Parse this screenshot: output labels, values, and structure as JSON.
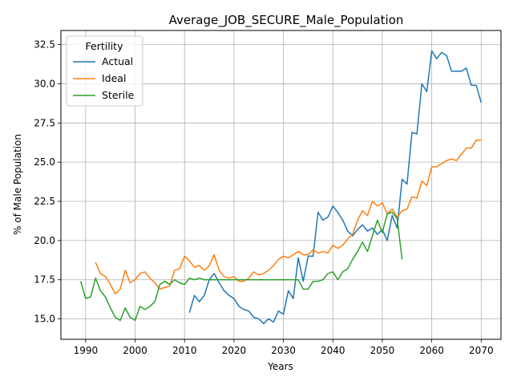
{
  "chart_data": {
    "type": "line",
    "title": "Average_JOB_SECURE_Male_Population",
    "xlabel": "Years",
    "ylabel": "% of Male Population",
    "xlim": [
      1985,
      2074
    ],
    "ylim": [
      13.7,
      33.4
    ],
    "xticks": [
      1990,
      2000,
      2010,
      2020,
      2030,
      2040,
      2050,
      2060,
      2070
    ],
    "yticks": [
      15.0,
      17.5,
      20.0,
      22.5,
      25.0,
      27.5,
      30.0,
      32.5
    ],
    "ytick_labels": [
      "15.0",
      "17.5",
      "20.0",
      "22.5",
      "25.0",
      "27.5",
      "30.0",
      "32.5"
    ],
    "grid": true,
    "legend": {
      "title": "Fertility",
      "placement": "top-left"
    },
    "series": [
      {
        "name": "Actual",
        "color": "#1f77b4",
        "x": [
          2011,
          2012,
          2013,
          2014,
          2015,
          2016,
          2017,
          2018,
          2019,
          2020,
          2021,
          2022,
          2023,
          2024,
          2025,
          2026,
          2027,
          2028,
          2029,
          2030,
          2031,
          2032,
          2033,
          2034,
          2035,
          2036,
          2037,
          2038,
          2039,
          2040,
          2041,
          2042,
          2043,
          2044,
          2045,
          2046,
          2047,
          2048,
          2049,
          2050,
          2051,
          2052,
          2053,
          2054,
          2055,
          2056,
          2057,
          2058,
          2059,
          2060,
          2061,
          2062,
          2063,
          2064,
          2065,
          2066,
          2067,
          2068,
          2069,
          2070
        ],
        "values": [
          15.4,
          16.5,
          16.1,
          16.5,
          17.5,
          17.9,
          17.3,
          16.8,
          16.5,
          16.3,
          15.8,
          15.6,
          15.5,
          15.1,
          15.0,
          14.7,
          15.0,
          14.8,
          15.5,
          15.3,
          16.8,
          16.3,
          18.9,
          17.4,
          19.0,
          19.0,
          21.8,
          21.3,
          21.5,
          22.2,
          21.8,
          21.3,
          20.6,
          20.3,
          20.7,
          21.0,
          20.6,
          20.8,
          20.4,
          20.7,
          20.0,
          21.6,
          20.8,
          23.9,
          23.6,
          26.9,
          26.8,
          30.0,
          29.5,
          32.1,
          31.6,
          32.0,
          31.8,
          30.8,
          30.8,
          30.8,
          31.0,
          29.9,
          29.9,
          28.8
        ]
      },
      {
        "name": "Ideal",
        "color": "#ff7f0e",
        "x": [
          1992,
          1993,
          1994,
          1995,
          1996,
          1997,
          1998,
          1999,
          2000,
          2001,
          2002,
          2003,
          2004,
          2005,
          2006,
          2007,
          2008,
          2009,
          2010,
          2011,
          2012,
          2013,
          2014,
          2015,
          2016,
          2017,
          2018,
          2019,
          2020,
          2021,
          2022,
          2023,
          2024,
          2025,
          2026,
          2027,
          2028,
          2029,
          2030,
          2031,
          2032,
          2033,
          2034,
          2035,
          2036,
          2037,
          2038,
          2039,
          2040,
          2041,
          2042,
          2043,
          2044,
          2045,
          2046,
          2047,
          2048,
          2049,
          2050,
          2051,
          2052,
          2053,
          2054,
          2055,
          2056,
          2057,
          2058,
          2059,
          2060,
          2061,
          2062,
          2063,
          2064,
          2065,
          2066,
          2067,
          2068,
          2069,
          2070
        ],
        "values": [
          18.6,
          17.9,
          17.7,
          17.2,
          16.6,
          16.9,
          18.1,
          17.3,
          17.5,
          17.9,
          18.0,
          17.6,
          17.3,
          16.9,
          17.0,
          17.1,
          18.1,
          18.2,
          19.0,
          18.7,
          18.3,
          18.4,
          18.1,
          18.4,
          19.1,
          18.1,
          17.7,
          17.6,
          17.7,
          17.4,
          17.4,
          17.6,
          18.0,
          17.8,
          17.9,
          18.1,
          18.4,
          18.8,
          19.0,
          18.9,
          19.1,
          19.3,
          19.1,
          19.1,
          19.4,
          19.2,
          19.3,
          19.2,
          19.7,
          19.5,
          19.7,
          20.1,
          20.4,
          21.3,
          21.9,
          21.6,
          22.5,
          22.2,
          22.4,
          21.7,
          22.0,
          21.5,
          21.9,
          22.0,
          22.8,
          22.7,
          23.8,
          23.5,
          24.7,
          24.7,
          24.9,
          25.1,
          25.2,
          25.1,
          25.5,
          25.9,
          25.9,
          26.4,
          26.4
        ]
      },
      {
        "name": "Sterile",
        "color": "#2ca02c",
        "x": [
          1989,
          1990,
          1991,
          1992,
          1993,
          1994,
          1995,
          1996,
          1997,
          1998,
          1999,
          2000,
          2001,
          2002,
          2003,
          2004,
          2005,
          2006,
          2007,
          2008,
          2009,
          2010,
          2011,
          2012,
          2013,
          2014,
          2015,
          2016,
          2017,
          2018,
          2019,
          2020,
          2021,
          2022,
          2023,
          2024,
          2025,
          2026,
          2027,
          2028,
          2029,
          2030,
          2031,
          2032,
          2033,
          2034,
          2035,
          2036,
          2037,
          2038,
          2039,
          2040,
          2041,
          2042,
          2043,
          2044,
          2045,
          2046,
          2047,
          2048,
          2049,
          2050,
          2051,
          2052,
          2053,
          2054
        ],
        "values": [
          17.4,
          16.3,
          16.4,
          17.6,
          16.8,
          16.4,
          15.7,
          15.1,
          14.9,
          15.7,
          15.1,
          14.9,
          15.8,
          15.6,
          15.8,
          16.1,
          17.2,
          17.4,
          17.2,
          17.5,
          17.3,
          17.2,
          17.6,
          17.5,
          17.6,
          17.5,
          17.5,
          17.5,
          17.5,
          17.5,
          17.5,
          17.5,
          17.5,
          17.5,
          17.5,
          17.5,
          17.5,
          17.5,
          17.5,
          17.5,
          17.5,
          17.5,
          17.5,
          17.5,
          17.5,
          16.9,
          16.9,
          17.4,
          17.4,
          17.5,
          17.9,
          18.0,
          17.5,
          18.0,
          18.2,
          18.8,
          19.3,
          19.9,
          19.3,
          20.3,
          21.3,
          20.5,
          21.7,
          21.8,
          21.4,
          18.8
        ]
      }
    ]
  }
}
